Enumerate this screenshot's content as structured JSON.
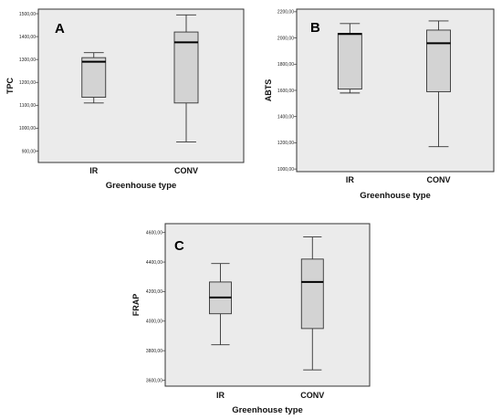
{
  "chart_data": [
    {
      "type": "boxplot",
      "panel_label": "A",
      "xlabel": "Greenhouse type",
      "ylabel": "TPC",
      "categories": [
        "IR",
        "CONV"
      ],
      "ylim": [
        850,
        1520
      ],
      "yticks": [
        900,
        1000,
        1100,
        1200,
        1300,
        1400,
        1500
      ],
      "ytick_labels": [
        "900,00",
        "1000,00",
        "1100,00",
        "1200,00",
        "1300,00",
        "1400,00",
        "1500,00"
      ],
      "boxes": [
        {
          "category": "IR",
          "min": 1110,
          "q1": 1135,
          "median": 1290,
          "q3": 1308,
          "max": 1330
        },
        {
          "category": "CONV",
          "min": 940,
          "q1": 1110,
          "median": 1375,
          "q3": 1420,
          "max": 1495
        }
      ],
      "grid": false
    },
    {
      "type": "boxplot",
      "panel_label": "B",
      "xlabel": "Greenhouse type",
      "ylabel": "ABTS",
      "categories": [
        "IR",
        "CONV"
      ],
      "ylim": [
        980,
        2220
      ],
      "yticks": [
        1000,
        1200,
        1400,
        1600,
        1800,
        2000,
        2200
      ],
      "ytick_labels": [
        "1000,00",
        "1200,00",
        "1400,00",
        "1600,00",
        "1800,00",
        "2000,00",
        "2200,00"
      ],
      "boxes": [
        {
          "category": "IR",
          "min": 1580,
          "q1": 1610,
          "median": 2030,
          "q3": 2035,
          "max": 2110
        },
        {
          "category": "CONV",
          "min": 1170,
          "q1": 1590,
          "median": 1960,
          "q3": 2060,
          "max": 2130
        }
      ],
      "grid": false
    },
    {
      "type": "boxplot",
      "panel_label": "C",
      "xlabel": "Greenhouse type",
      "ylabel": "FRAP",
      "categories": [
        "IR",
        "CONV"
      ],
      "ylim": [
        3560,
        4660
      ],
      "yticks": [
        3600,
        3800,
        4000,
        4200,
        4400,
        4600
      ],
      "ytick_labels": [
        "3600,00",
        "3800,00",
        "4000,00",
        "4200,00",
        "4400,00",
        "4600,00"
      ],
      "boxes": [
        {
          "category": "IR",
          "min": 3840,
          "q1": 4050,
          "median": 4160,
          "q3": 4265,
          "max": 4390
        },
        {
          "category": "CONV",
          "min": 3670,
          "q1": 3950,
          "median": 4265,
          "q3": 4420,
          "max": 4570
        }
      ],
      "grid": false
    }
  ]
}
